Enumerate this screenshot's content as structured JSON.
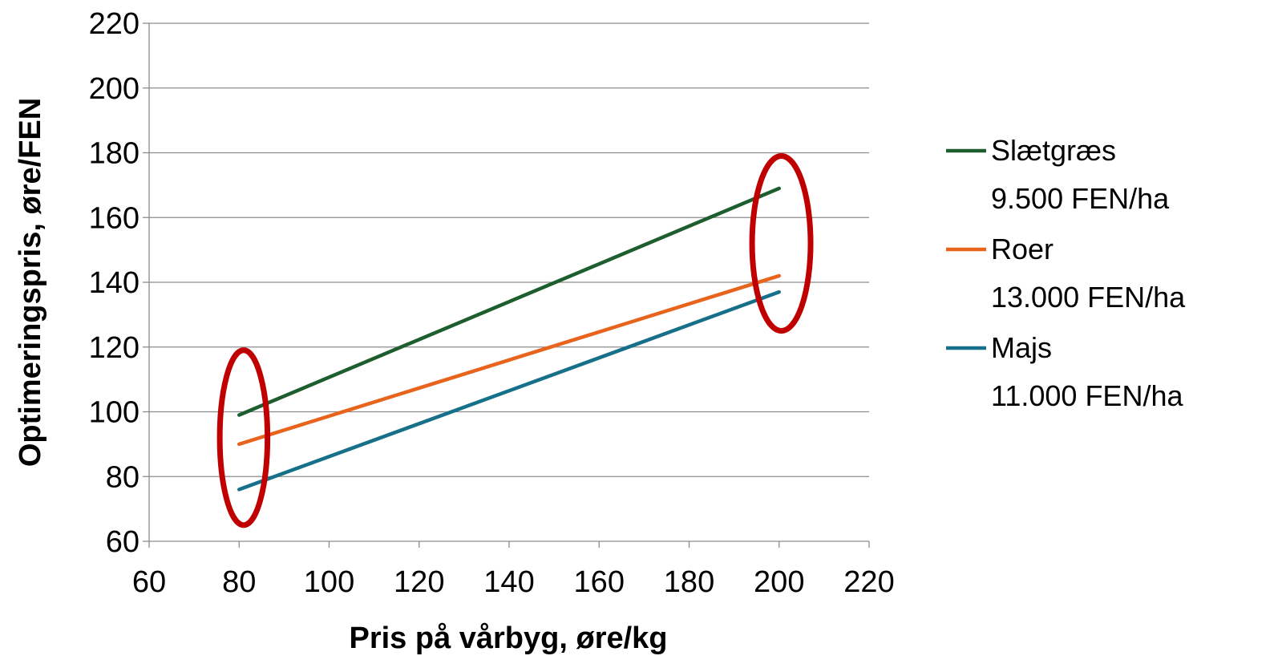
{
  "chart_data": {
    "type": "line",
    "xlabel": "Pris på vårbyg, øre/kg",
    "ylabel": "Optimeringspris, øre/FEN",
    "xlim": [
      60,
      220
    ],
    "ylim": [
      60,
      220
    ],
    "xticks": [
      60,
      80,
      100,
      120,
      140,
      160,
      180,
      200,
      220
    ],
    "yticks": [
      60,
      80,
      100,
      120,
      140,
      160,
      180,
      200,
      220
    ],
    "grid": "horizontal",
    "legend_position": "right",
    "series": [
      {
        "name": "Slætgræs",
        "sub": "9.500 FEN/ha",
        "color": "#1e5e2e",
        "x": [
          80,
          200
        ],
        "y": [
          99,
          169
        ]
      },
      {
        "name": "Roer",
        "sub": "13.000 FEN/ha",
        "color": "#e8641c",
        "x": [
          80,
          200
        ],
        "y": [
          90,
          142
        ]
      },
      {
        "name": "Majs",
        "sub": "11.000 FEN/ha",
        "color": "#16708a",
        "x": [
          80,
          200
        ],
        "y": [
          76,
          137
        ]
      }
    ],
    "annotations": [
      {
        "type": "ellipse",
        "color": "#c00000",
        "cx": 81,
        "cy": 92,
        "rx": 5.3,
        "ry": 27
      },
      {
        "type": "ellipse",
        "color": "#c00000",
        "cx": 200.5,
        "cy": 152,
        "rx": 6.5,
        "ry": 27
      }
    ]
  }
}
